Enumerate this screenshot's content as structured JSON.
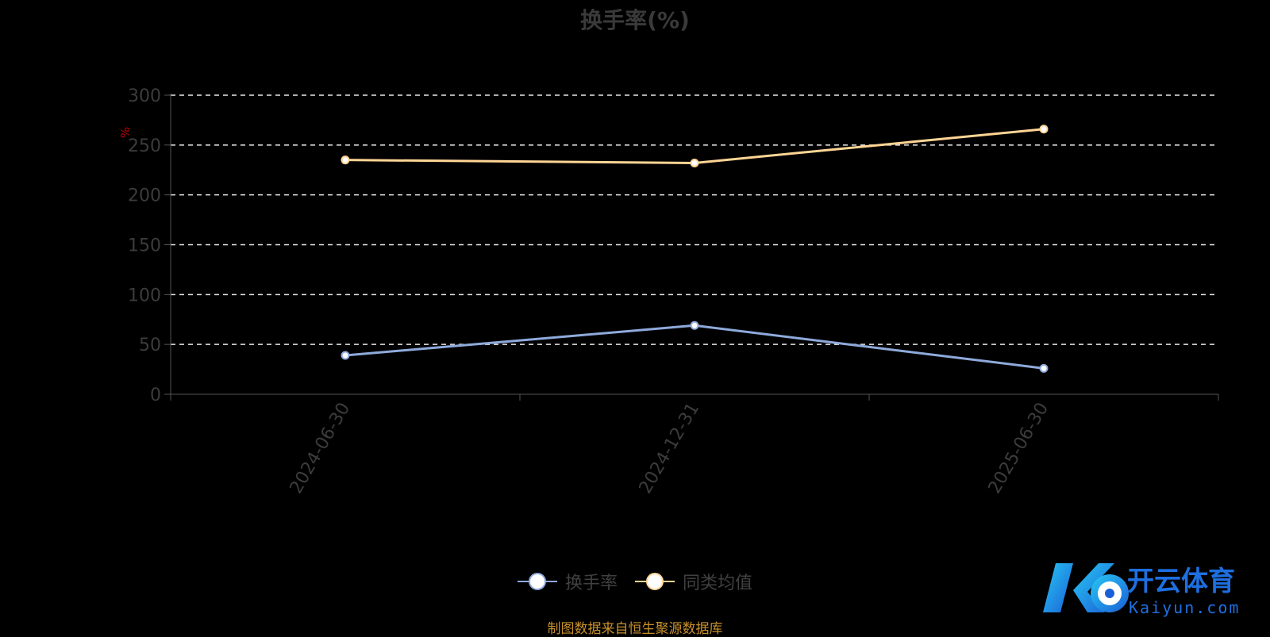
{
  "chart_data": {
    "type": "line",
    "title": "换手率(%)",
    "ylabel": "%",
    "categories": [
      "2024-06-30",
      "2024-12-31",
      "2025-06-30"
    ],
    "ylim": [
      0,
      300
    ],
    "yticks": [
      0,
      50,
      100,
      150,
      200,
      250,
      300
    ],
    "grid": true,
    "legend_position": "bottom-center",
    "series": [
      {
        "name": "换手率",
        "values": [
          39,
          69,
          26
        ],
        "color": "#8eaadb"
      },
      {
        "name": "同类均值",
        "values": [
          235,
          232,
          266
        ],
        "color": "#ffd595"
      }
    ]
  },
  "source_text": "制图数据来自恒生聚源数据库",
  "watermark": {
    "brand": "开云体育",
    "url": "Kaiyun.com"
  }
}
